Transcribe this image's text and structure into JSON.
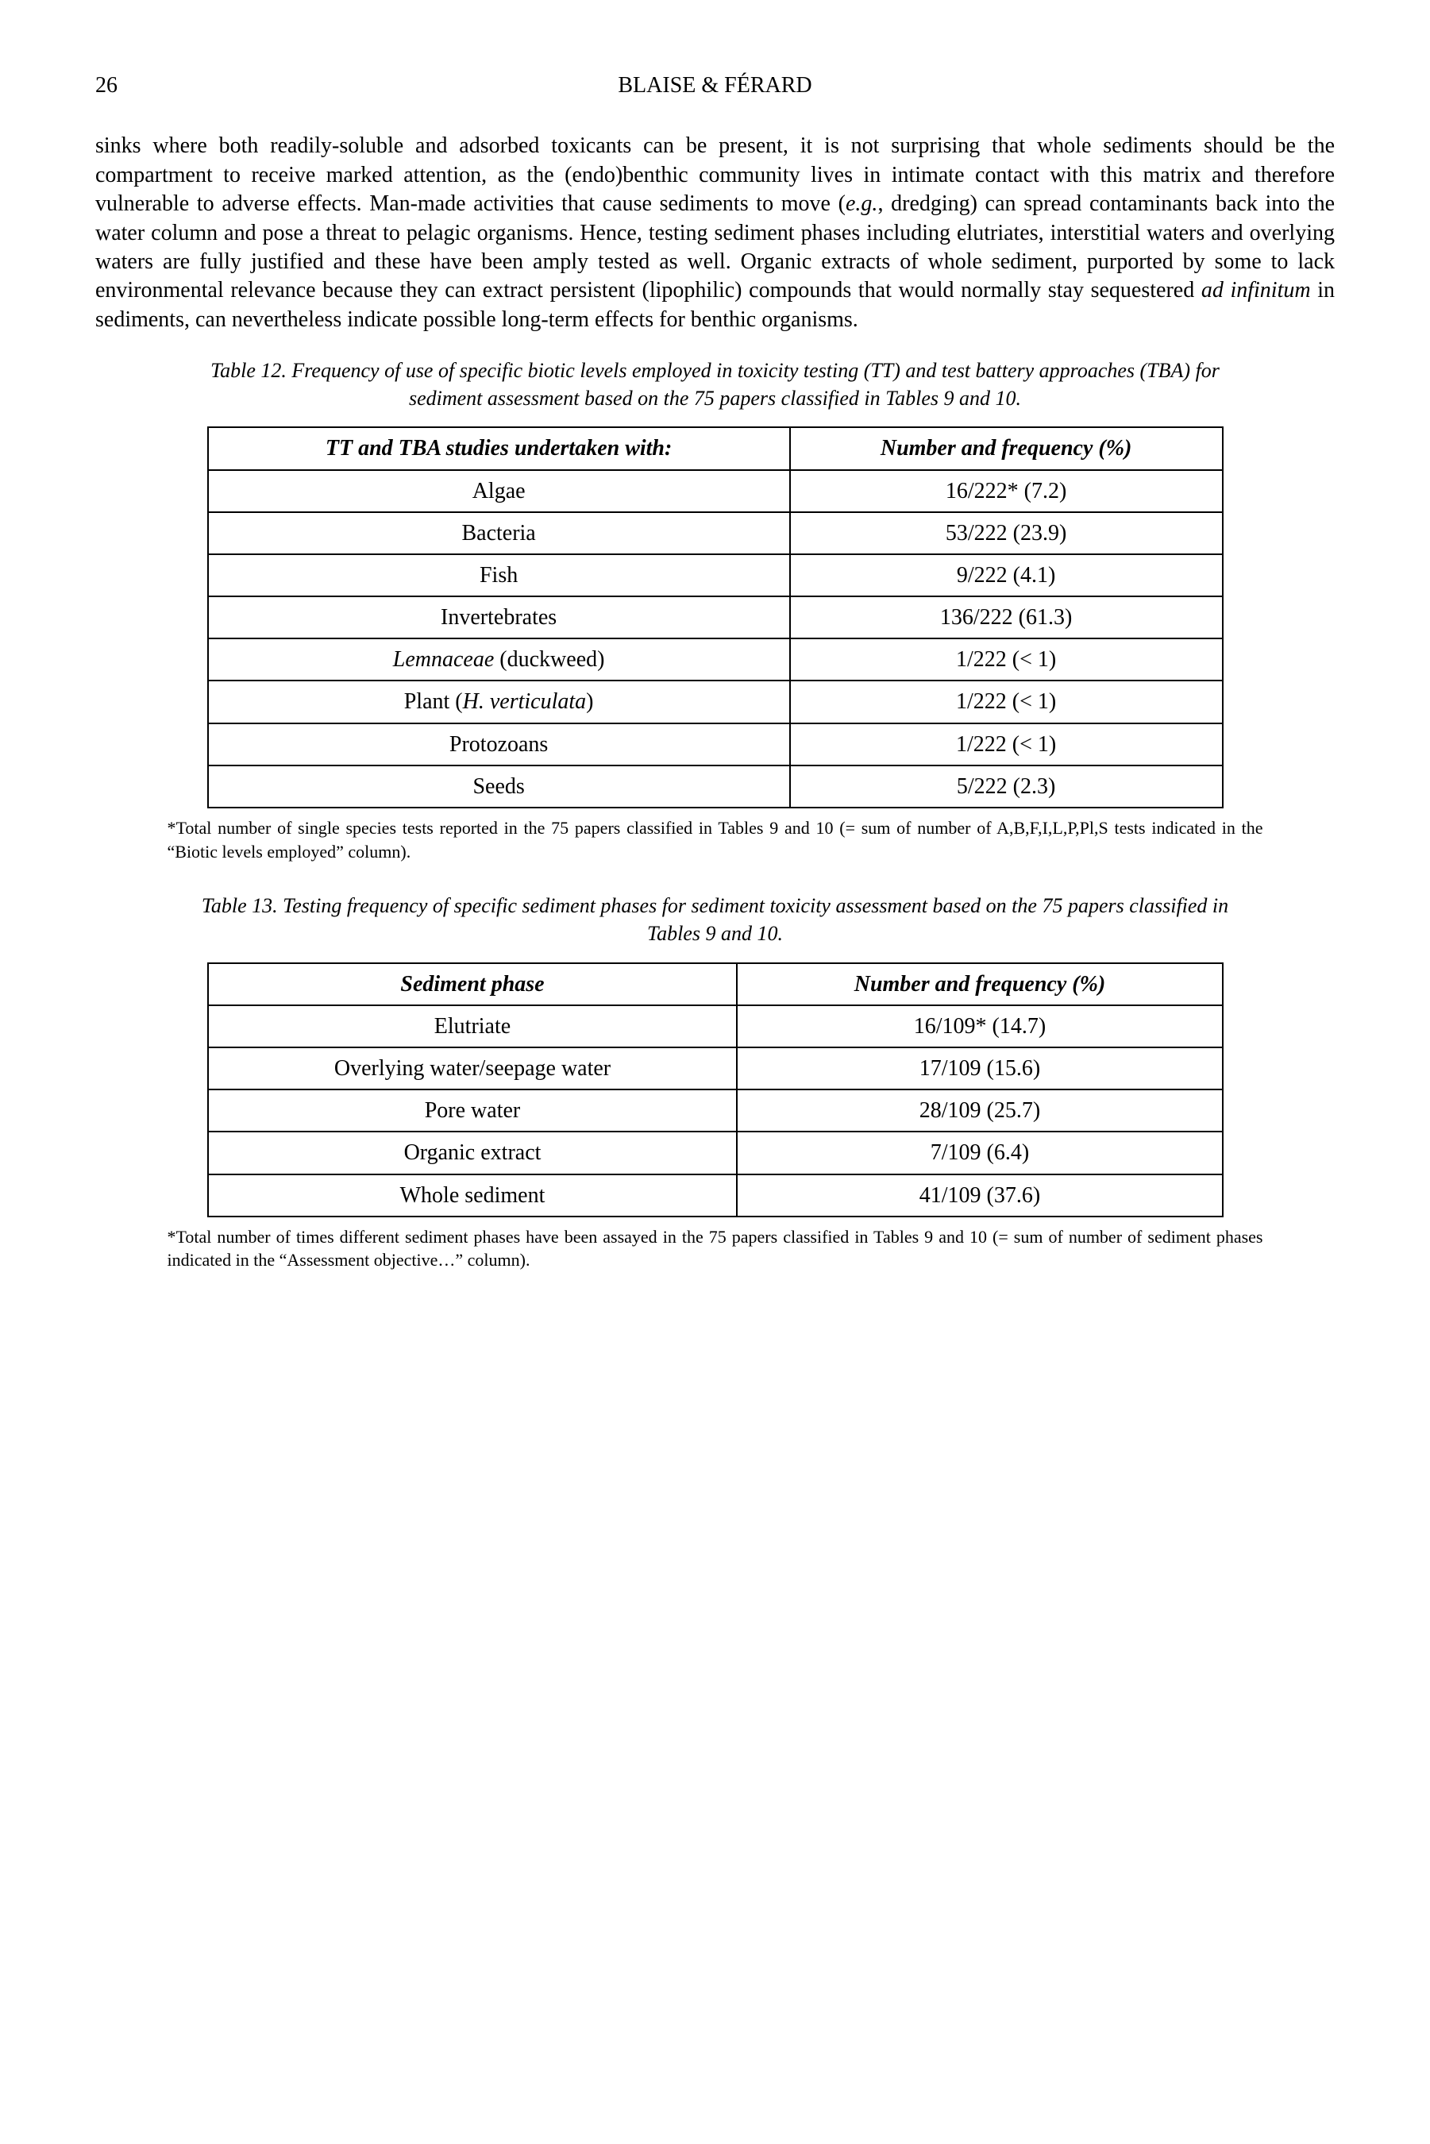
{
  "header": {
    "page_number": "26",
    "running_head": "BLAISE & FÉRARD"
  },
  "paragraph": "sinks where both readily-soluble and adsorbed toxicants can be present, it is not surprising that whole sediments should be the compartment to receive marked attention, as the (endo)benthic community lives in intimate contact with this matrix and therefore vulnerable to adverse effects. Man-made activities that cause sediments to move (e.g., dredging) can spread contaminants back into the water column and pose a threat to pelagic organisms. Hence, testing sediment phases including elutriates, interstitial waters and overlying waters are fully justified and these have been amply tested as well. Organic extracts of whole sediment, purported by some to lack environmental relevance because they can extract persistent (lipophilic) compounds that would normally stay sequestered ad infinitum in sediments, can nevertheless indicate possible long-term effects for benthic organisms.",
  "table12": {
    "caption": "Table 12. Frequency of use of specific biotic levels employed in toxicity testing (TT) and test battery approaches (TBA) for sediment assessment based on the 75 papers classified in Tables 9 and 10.",
    "col1_header": "TT and TBA studies undertaken with:",
    "col2_header": "Number and frequency (%)",
    "rows": [
      {
        "c1": "Algae",
        "c2": "16/222* (7.2)"
      },
      {
        "c1": "Bacteria",
        "c2": "53/222 (23.9)"
      },
      {
        "c1": "Fish",
        "c2": "9/222 (4.1)"
      },
      {
        "c1": "Invertebrates",
        "c2": "136/222 (61.3)"
      },
      {
        "c1": "Lemnaceae (duckweed)",
        "c2": "1/222 (< 1)",
        "c1_italic_prefix": "Lemnaceae",
        "c1_suffix": " (duckweed)"
      },
      {
        "c1": "Plant (H. verticulata)",
        "c2": "1/222 (< 1)",
        "c1_plain_prefix": "Plant (",
        "c1_italic": "H. verticulata",
        "c1_plain_suffix": ")"
      },
      {
        "c1": "Protozoans",
        "c2": "1/222 (< 1)"
      },
      {
        "c1": "Seeds",
        "c2": "5/222 (2.3)"
      }
    ],
    "footnote": "*Total number of single species tests reported in the 75 papers classified in Tables 9 and 10 (= sum of number of A,B,F,I,L,P,Pl,S tests indicated in the “Biotic levels employed” column)."
  },
  "table13": {
    "caption": "Table 13. Testing frequency of specific sediment phases for sediment toxicity assessment based on the 75 papers classified in Tables 9 and 10.",
    "col1_header": "Sediment phase",
    "col2_header": "Number and frequency (%)",
    "rows": [
      {
        "c1": "Elutriate",
        "c2": "16/109* (14.7)"
      },
      {
        "c1": "Overlying water/seepage water",
        "c2": "17/109 (15.6)"
      },
      {
        "c1": "Pore water",
        "c2": "28/109 (25.7)"
      },
      {
        "c1": "Organic extract",
        "c2": "7/109 (6.4)"
      },
      {
        "c1": "Whole sediment",
        "c2": "41/109 (37.6)"
      }
    ],
    "footnote": "*Total number of times different sediment phases have been assayed in the 75 papers classified in Tables 9 and 10 (= sum of number of sediment phases indicated in the “Assessment objective…” column)."
  }
}
